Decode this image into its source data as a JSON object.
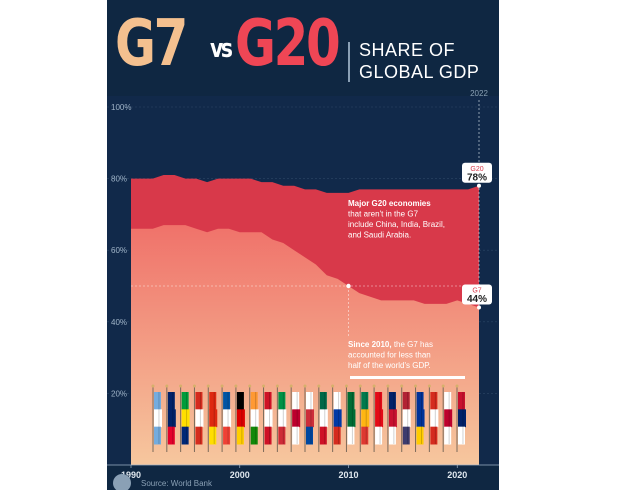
{
  "header": {
    "title_left": "G7",
    "title_vs": "vs",
    "title_right": "G20",
    "subtitle_line1": "SHARE OF",
    "subtitle_line2": "GLOBAL GDP"
  },
  "source": "Source: World Bank",
  "colors": {
    "background": "#0f2742",
    "g20_band": "#d8394a",
    "g7_area_top": "#f0726a",
    "g7_area_bottom": "#f6c79e",
    "g7_title": "#f4c08f",
    "g20_title": "#ef4655"
  },
  "chart_data": {
    "type": "area",
    "x": [
      1990,
      1991,
      1992,
      1993,
      1994,
      1995,
      1996,
      1997,
      1998,
      1999,
      2000,
      2001,
      2002,
      2003,
      2004,
      2005,
      2006,
      2007,
      2008,
      2009,
      2010,
      2011,
      2012,
      2013,
      2014,
      2015,
      2016,
      2017,
      2018,
      2019,
      2020,
      2021,
      2022
    ],
    "series": [
      {
        "name": "G20",
        "values": [
          80,
          80,
          80,
          81,
          81,
          80,
          80,
          79,
          80,
          80,
          80,
          80,
          79,
          79,
          78,
          78,
          77,
          77,
          76,
          76,
          76,
          77,
          77,
          77,
          77,
          77,
          77,
          77,
          77,
          77,
          77,
          77,
          78
        ]
      },
      {
        "name": "G7",
        "values": [
          66,
          66,
          66,
          67,
          67,
          67,
          66,
          65,
          66,
          66,
          65,
          65,
          65,
          63,
          62,
          60,
          58,
          56,
          53,
          52,
          50,
          48,
          47,
          46,
          46,
          46,
          46,
          45,
          45,
          45,
          46,
          45,
          44
        ]
      }
    ],
    "ylim": [
      0,
      100
    ],
    "yticks": [
      "20%",
      "40%",
      "60%",
      "80%",
      "100%"
    ],
    "xticks": [
      "1990",
      "2000",
      "2010",
      "2020"
    ],
    "top_year_label": "2022",
    "end_labels": {
      "g20": {
        "name": "G20",
        "value": "78%"
      },
      "g7": {
        "name": "G7",
        "value": "44%"
      }
    },
    "annotations": {
      "g20_note": [
        {
          "bold": "Major G20 economies",
          "rest": ""
        },
        {
          "bold": "",
          "rest": "that aren't in the G7"
        },
        {
          "bold": "",
          "rest": "include China, India, Brazil,"
        },
        {
          "bold": "",
          "rest": "and Saudi Arabia."
        }
      ],
      "g7_note": [
        {
          "bold": "Since 2010,",
          "rest": " the G7 has"
        },
        {
          "bold": "",
          "rest": "accounted for less than"
        },
        {
          "bold": "",
          "rest": "half of the world's GDP."
        }
      ]
    }
  },
  "flags": [
    {
      "name": "argentina-flag",
      "colors": [
        "#74acdf",
        "#ffffff",
        "#74acdf"
      ]
    },
    {
      "name": "australia-flag",
      "colors": [
        "#012169",
        "#012169",
        "#e4002b"
      ]
    },
    {
      "name": "brazil-flag",
      "colors": [
        "#009c3b",
        "#ffdf00",
        "#002776"
      ]
    },
    {
      "name": "canada-flag",
      "colors": [
        "#d52b1e",
        "#ffffff",
        "#d52b1e"
      ]
    },
    {
      "name": "china-flag",
      "colors": [
        "#de2910",
        "#de2910",
        "#ffde00"
      ]
    },
    {
      "name": "france-flag",
      "colors": [
        "#0055a4",
        "#ffffff",
        "#ef4135"
      ]
    },
    {
      "name": "germany-flag",
      "colors": [
        "#000000",
        "#dd0000",
        "#ffce00"
      ]
    },
    {
      "name": "india-flag",
      "colors": [
        "#ff9933",
        "#ffffff",
        "#138808"
      ]
    },
    {
      "name": "indonesia-flag",
      "colors": [
        "#ce1126",
        "#ffffff",
        "#ce1126"
      ]
    },
    {
      "name": "italy-flag",
      "colors": [
        "#009246",
        "#ffffff",
        "#ce2b37"
      ]
    },
    {
      "name": "japan-flag",
      "colors": [
        "#ffffff",
        "#bc002d",
        "#ffffff"
      ]
    },
    {
      "name": "korea-flag",
      "colors": [
        "#ffffff",
        "#cd2e3a",
        "#0047a0"
      ]
    },
    {
      "name": "mexico-flag",
      "colors": [
        "#006847",
        "#ffffff",
        "#ce1126"
      ]
    },
    {
      "name": "russia-flag",
      "colors": [
        "#ffffff",
        "#0039a6",
        "#d52b1e"
      ]
    },
    {
      "name": "saudi-arabia-flag",
      "colors": [
        "#006c35",
        "#006c35",
        "#ffffff"
      ]
    },
    {
      "name": "south-africa-flag",
      "colors": [
        "#007a4d",
        "#ffb612",
        "#de3831"
      ]
    },
    {
      "name": "turkey-flag",
      "colors": [
        "#e30a17",
        "#e30a17",
        "#ffffff"
      ]
    },
    {
      "name": "uk-flag",
      "colors": [
        "#012169",
        "#c8102e",
        "#ffffff"
      ]
    },
    {
      "name": "us-flag",
      "colors": [
        "#b22234",
        "#ffffff",
        "#3c3b6e"
      ]
    },
    {
      "name": "eu-flag",
      "colors": [
        "#003399",
        "#003399",
        "#ffcc00"
      ]
    },
    {
      "name": "canada-flag-2",
      "colors": [
        "#d52b1e",
        "#ffffff",
        "#d52b1e"
      ]
    },
    {
      "name": "japan-flag-2",
      "colors": [
        "#ffffff",
        "#bc002d",
        "#ffffff"
      ]
    },
    {
      "name": "uk-flag-2",
      "colors": [
        "#c8102e",
        "#012169",
        "#ffffff"
      ]
    }
  ]
}
